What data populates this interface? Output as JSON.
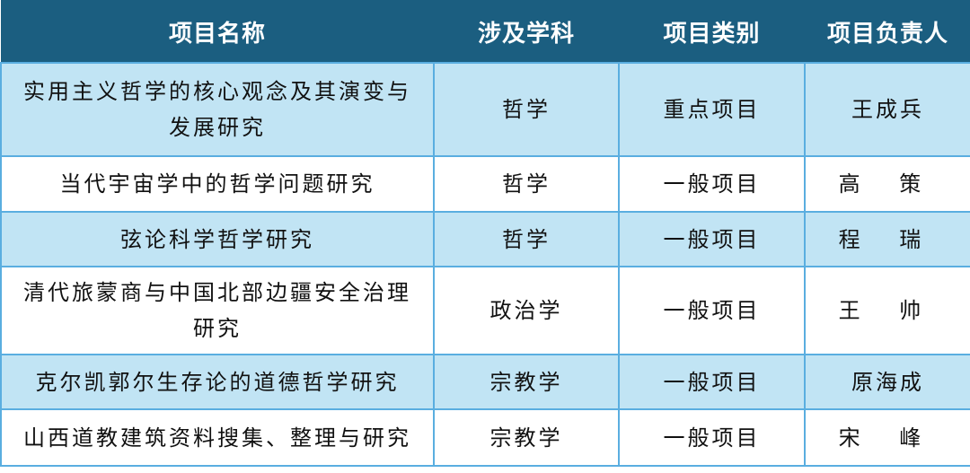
{
  "table": {
    "headers": [
      "项目名称",
      "涉及学科",
      "项目类别",
      "项目负责人"
    ],
    "rows": [
      {
        "name": "实用主义哲学的核心观念及其演变与发展研究",
        "subject": "哲学",
        "category": "重点项目",
        "leader": "王成兵"
      },
      {
        "name": "当代宇宙学中的哲学问题研究",
        "subject": "哲学",
        "category": "一般项目",
        "leader": "高 策"
      },
      {
        "name": "弦论科学哲学研究",
        "subject": "哲学",
        "category": "一般项目",
        "leader": "程 瑞"
      },
      {
        "name": "清代旅蒙商与中国北部边疆安全治理研究",
        "subject": "政治学",
        "category": "一般项目",
        "leader": "王 帅"
      },
      {
        "name": "克尔凯郭尔生存论的道德哲学研究",
        "subject": "宗教学",
        "category": "一般项目",
        "leader": "原海成"
      },
      {
        "name": "山西道教建筑资料搜集、整理与研究",
        "subject": "宗教学",
        "category": "一般项目",
        "leader": "宋 峰"
      }
    ]
  },
  "colors": {
    "header_bg": "#1b5e80",
    "row_alt_bg": "#c1e4f4",
    "border": "#5aaee0"
  }
}
